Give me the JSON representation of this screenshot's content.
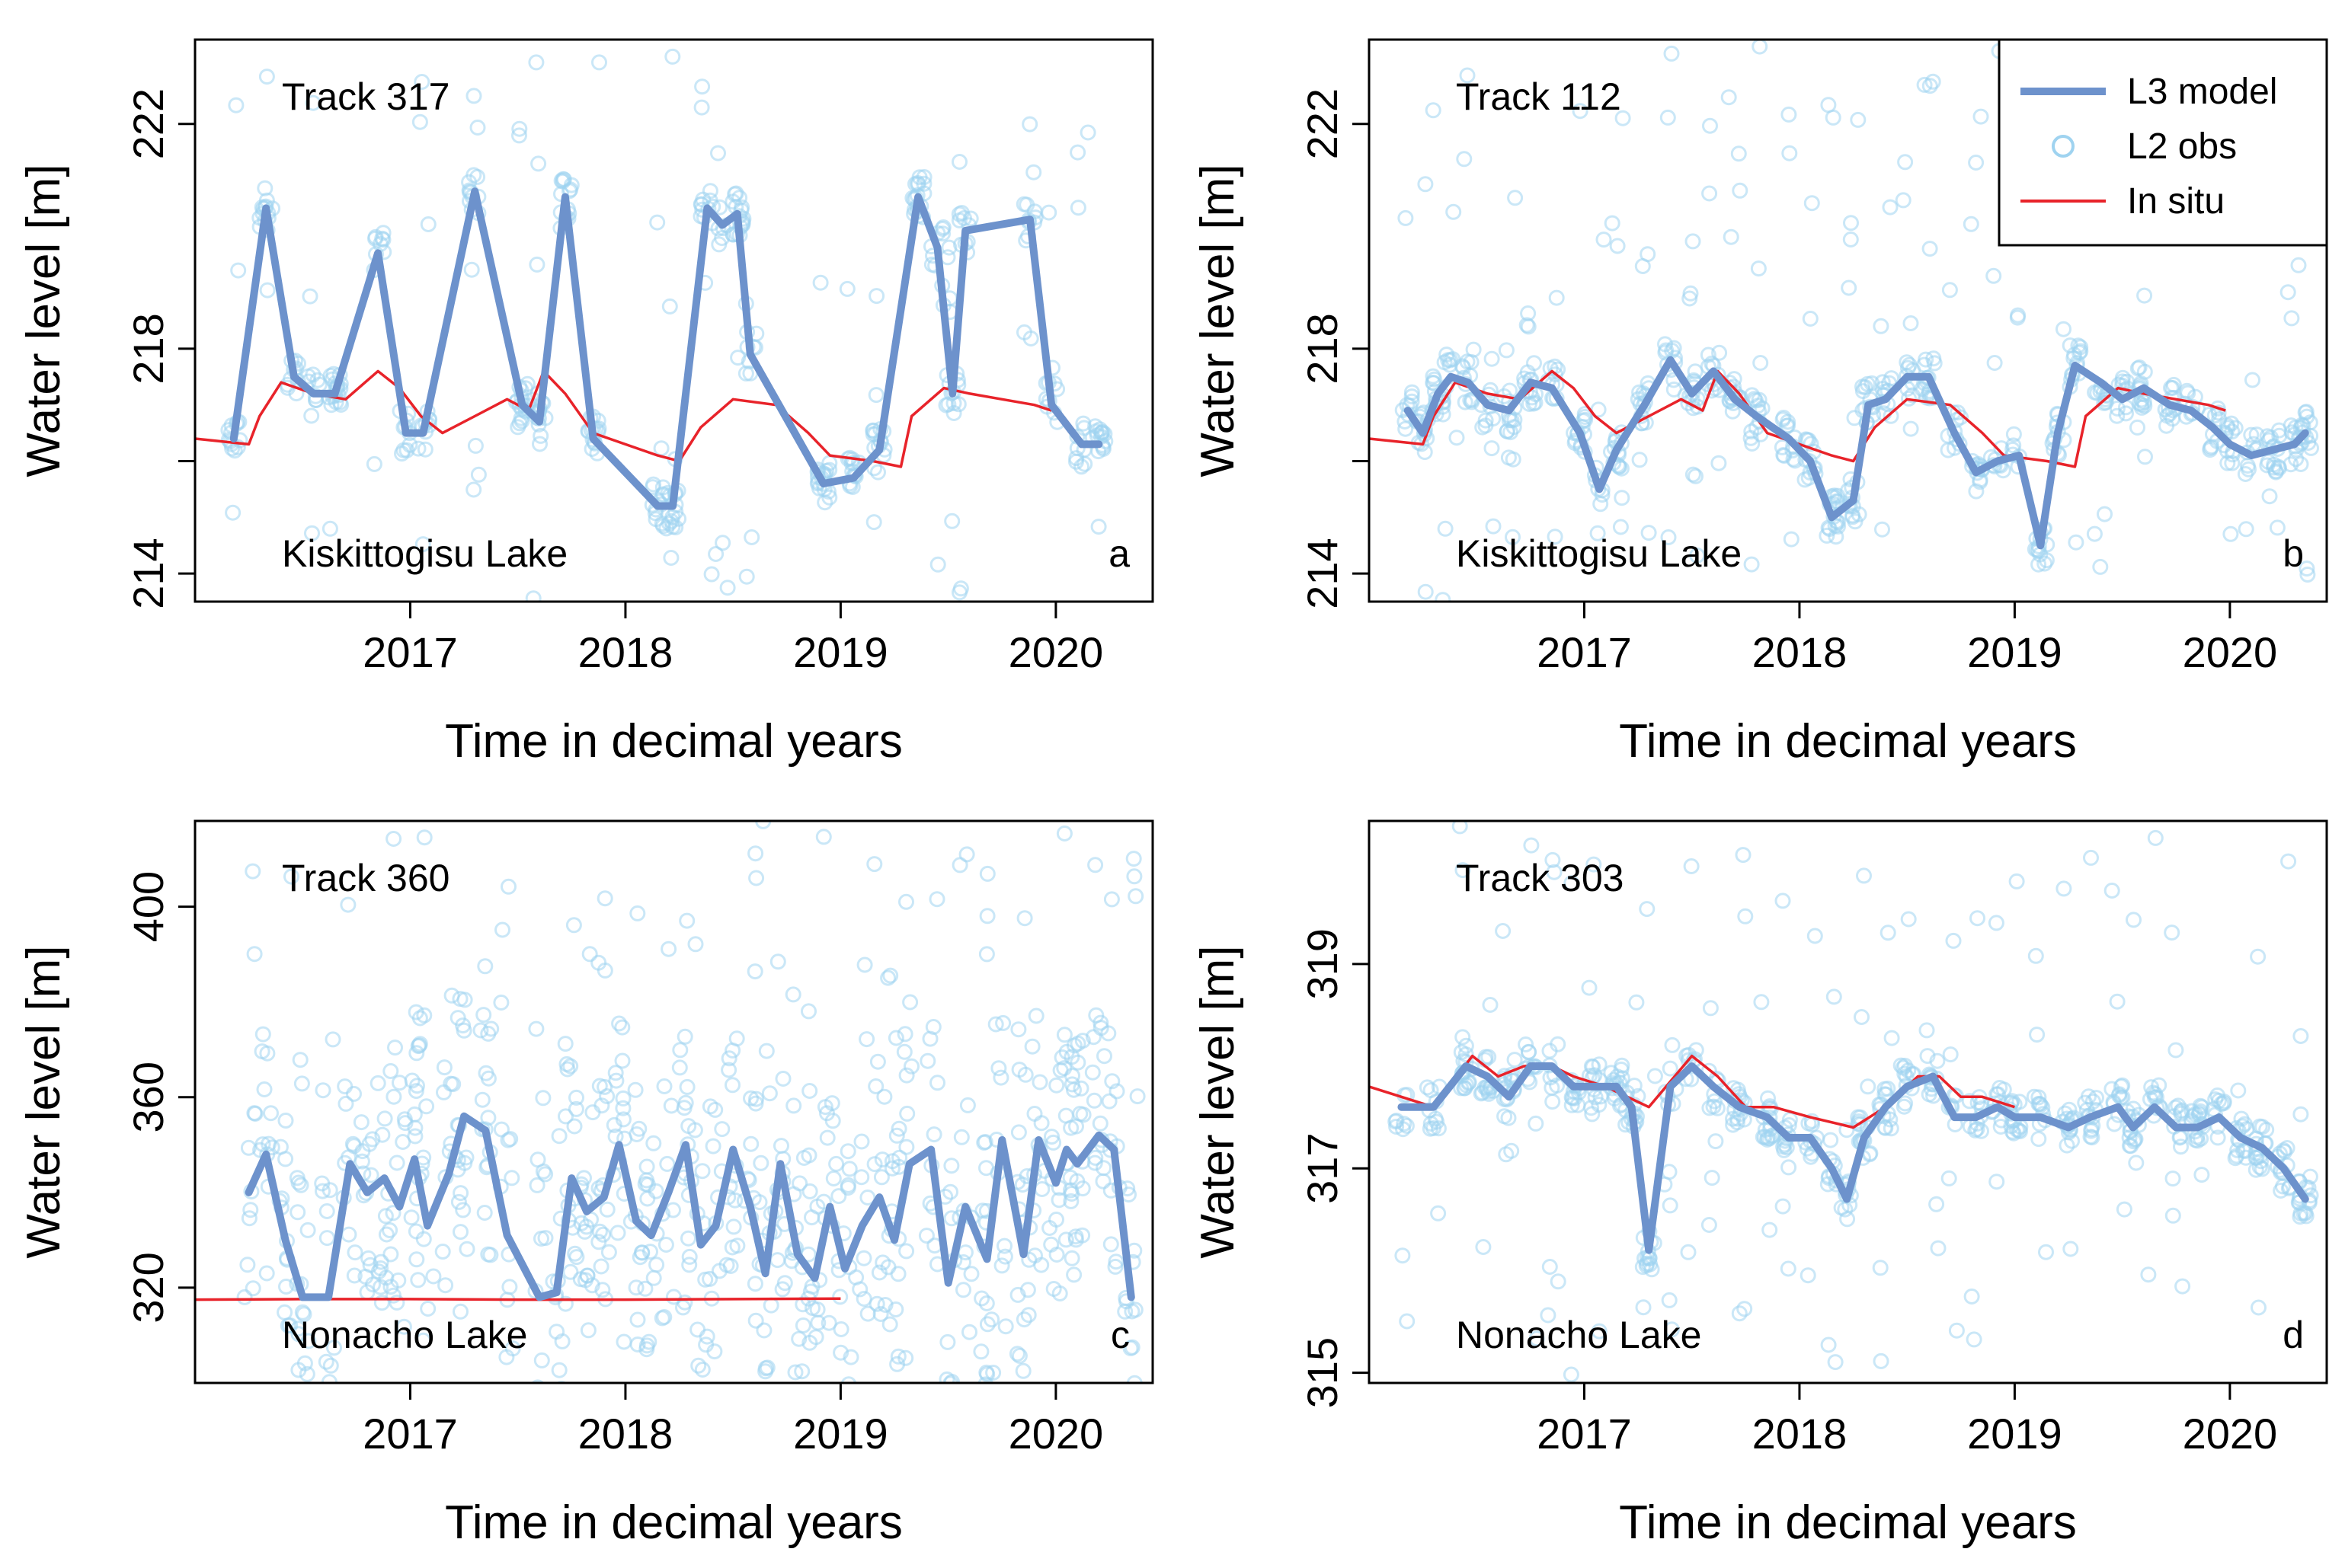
{
  "colors": {
    "l3": "#6d92cc",
    "obs": "#9fd3f0",
    "insitu": "#e8232a"
  },
  "legend": {
    "l3": "L3 model",
    "obs": "L2 obs",
    "insitu": "In situ"
  },
  "chart_data": [
    {
      "type": "line",
      "panel": "a",
      "title": "Track 317",
      "lake": "Kiskittogisu Lake",
      "xlabel": "Time in decimal years",
      "ylabel": "Water level [m]",
      "xlim": [
        2016.0,
        2020.45
      ],
      "ylim": [
        213.5,
        223.5
      ],
      "xticks": [
        2017,
        2018,
        2019,
        2020
      ],
      "yticks": [
        214,
        216,
        218,
        222
      ],
      "ytick_labels": [
        "214",
        "",
        "218",
        "222"
      ],
      "l3_x": [
        2016.18,
        2016.33,
        2016.46,
        2016.55,
        2016.65,
        2016.85,
        2016.98,
        2017.06,
        2017.3,
        2017.52,
        2017.6,
        2017.72,
        2017.85,
        2018.15,
        2018.22,
        2018.38,
        2018.45,
        2018.52,
        2018.58,
        2018.92,
        2019.06,
        2019.18,
        2019.36,
        2019.45,
        2019.52,
        2019.58,
        2019.88,
        2019.98,
        2020.12,
        2020.2
      ],
      "l3_y": [
        216.4,
        220.5,
        217.5,
        217.2,
        217.2,
        219.7,
        216.5,
        216.5,
        220.8,
        217.0,
        216.7,
        220.7,
        216.4,
        215.2,
        215.2,
        220.5,
        220.2,
        220.4,
        217.9,
        215.6,
        215.7,
        216.2,
        220.7,
        219.8,
        217.2,
        220.1,
        220.3,
        217.0,
        216.3,
        216.3
      ],
      "insitu_x": [
        2016.0,
        2016.25,
        2016.3,
        2016.4,
        2016.55,
        2016.7,
        2016.85,
        2016.95,
        2017.05,
        2017.15,
        2017.3,
        2017.45,
        2017.55,
        2017.62,
        2017.72,
        2017.85,
        2018.0,
        2018.15,
        2018.25,
        2018.35,
        2018.5,
        2018.7,
        2018.85,
        2018.95,
        2019.15,
        2019.28,
        2019.33,
        2019.48,
        2019.6,
        2019.75,
        2019.9,
        2019.98
      ],
      "insitu_y": [
        216.4,
        216.3,
        216.8,
        217.4,
        217.2,
        217.1,
        217.6,
        217.3,
        216.8,
        216.5,
        216.8,
        217.1,
        216.9,
        217.6,
        217.2,
        216.5,
        216.3,
        216.1,
        216.0,
        216.6,
        217.1,
        217.0,
        216.5,
        216.1,
        216.0,
        215.9,
        216.8,
        217.3,
        217.2,
        217.1,
        217.0,
        216.9
      ]
    },
    {
      "type": "line",
      "panel": "b",
      "title": "Track 112",
      "lake": "Kiskittogisu Lake",
      "xlabel": "Time in decimal years",
      "ylabel": "Water level [m]",
      "xlim": [
        2016.0,
        2020.45
      ],
      "ylim": [
        213.5,
        223.5
      ],
      "xticks": [
        2017,
        2018,
        2019,
        2020
      ],
      "yticks": [
        214,
        216,
        218,
        222
      ],
      "ytick_labels": [
        "214",
        "",
        "218",
        "222"
      ],
      "l3_x": [
        2016.18,
        2016.25,
        2016.32,
        2016.38,
        2016.46,
        2016.55,
        2016.65,
        2016.75,
        2016.85,
        2016.98,
        2017.07,
        2017.15,
        2017.28,
        2017.4,
        2017.5,
        2017.6,
        2017.7,
        2017.8,
        2017.95,
        2018.05,
        2018.15,
        2018.25,
        2018.32,
        2018.4,
        2018.5,
        2018.6,
        2018.72,
        2018.82,
        2018.92,
        2019.02,
        2019.12,
        2019.2,
        2019.28,
        2019.4,
        2019.5,
        2019.6,
        2019.72,
        2019.82,
        2019.92,
        2020.0,
        2020.1,
        2020.2,
        2020.3,
        2020.35
      ],
      "l3_y": [
        216.9,
        216.5,
        217.2,
        217.5,
        217.4,
        217.0,
        216.9,
        217.4,
        217.3,
        216.5,
        215.5,
        216.2,
        217.0,
        217.8,
        217.2,
        217.6,
        217.1,
        216.8,
        216.4,
        216.0,
        215.0,
        215.3,
        217.0,
        217.1,
        217.5,
        217.5,
        216.5,
        215.8,
        216.0,
        216.1,
        214.5,
        216.5,
        217.7,
        217.4,
        217.1,
        217.3,
        217.0,
        216.9,
        216.6,
        216.3,
        216.1,
        216.2,
        216.3,
        216.5
      ],
      "insitu_x": [
        2016.0,
        2016.25,
        2016.3,
        2016.4,
        2016.55,
        2016.7,
        2016.85,
        2016.95,
        2017.05,
        2017.15,
        2017.3,
        2017.45,
        2017.55,
        2017.62,
        2017.72,
        2017.85,
        2018.0,
        2018.15,
        2018.25,
        2018.35,
        2018.5,
        2018.7,
        2018.85,
        2018.95,
        2019.15,
        2019.28,
        2019.33,
        2019.48,
        2019.6,
        2019.75,
        2019.9,
        2019.98
      ],
      "insitu_y": [
        216.4,
        216.3,
        216.8,
        217.4,
        217.2,
        217.1,
        217.6,
        217.3,
        216.8,
        216.5,
        216.8,
        217.1,
        216.9,
        217.6,
        217.2,
        216.5,
        216.3,
        216.1,
        216.0,
        216.6,
        217.1,
        217.0,
        216.5,
        216.1,
        216.0,
        215.9,
        216.8,
        217.3,
        217.2,
        217.1,
        217.0,
        216.9
      ]
    },
    {
      "type": "line",
      "panel": "c",
      "title": "Track 360",
      "lake": "Nonacho Lake",
      "xlabel": "Time in decimal years",
      "ylabel": "Water level [m]",
      "xlim": [
        2016.0,
        2020.45
      ],
      "ylim": [
        300,
        418
      ],
      "xticks": [
        2017,
        2018,
        2019,
        2020
      ],
      "yticks": [
        320,
        360,
        400
      ],
      "ytick_labels": [
        "320",
        "360",
        "400"
      ],
      "l3_x": [
        2016.25,
        2016.33,
        2016.42,
        2016.5,
        2016.62,
        2016.72,
        2016.8,
        2016.88,
        2016.95,
        2017.02,
        2017.08,
        2017.18,
        2017.25,
        2017.35,
        2017.45,
        2017.6,
        2017.68,
        2017.75,
        2017.82,
        2017.9,
        2017.97,
        2018.05,
        2018.12,
        2018.2,
        2018.28,
        2018.35,
        2018.42,
        2018.5,
        2018.58,
        2018.65,
        2018.72,
        2018.8,
        2018.88,
        2018.95,
        2019.02,
        2019.1,
        2019.18,
        2019.25,
        2019.32,
        2019.42,
        2019.5,
        2019.58,
        2019.68,
        2019.75,
        2019.85,
        2019.92,
        2020.0,
        2020.05,
        2020.1,
        2020.2,
        2020.27,
        2020.35
      ],
      "l3_y": [
        340,
        348,
        330,
        318,
        318,
        346,
        340,
        343,
        337,
        347,
        333,
        344,
        356,
        353,
        331,
        318,
        319,
        343,
        336,
        339,
        350,
        334,
        331,
        340,
        350,
        329,
        333,
        349,
        337,
        323,
        346,
        327,
        322,
        337,
        324,
        333,
        339,
        330,
        346,
        349,
        321,
        337,
        326,
        351,
        327,
        351,
        342,
        349,
        346,
        352,
        349,
        318
      ],
      "insitu_x": [
        2016.0,
        2016.5,
        2017.0,
        2017.5,
        2018.0,
        2018.5,
        2019.0
      ],
      "insitu_y": [
        317.5,
        317.6,
        317.6,
        317.5,
        317.5,
        317.6,
        317.7
      ]
    },
    {
      "type": "line",
      "panel": "d",
      "title": "Track 303",
      "lake": "Nonacho Lake",
      "xlabel": "Time in decimal years",
      "ylabel": "Water level [m]",
      "xlim": [
        2016.0,
        2020.45
      ],
      "ylim": [
        314.9,
        320.4
      ],
      "xticks": [
        2017,
        2018,
        2019,
        2020
      ],
      "yticks": [
        315,
        317,
        319
      ],
      "ytick_labels": [
        "315",
        "317",
        "319"
      ],
      "l3_x": [
        2016.15,
        2016.3,
        2016.45,
        2016.55,
        2016.65,
        2016.75,
        2016.85,
        2016.95,
        2017.05,
        2017.15,
        2017.22,
        2017.3,
        2017.4,
        2017.5,
        2017.6,
        2017.72,
        2017.85,
        2017.95,
        2018.05,
        2018.15,
        2018.22,
        2018.3,
        2018.4,
        2018.5,
        2018.62,
        2018.72,
        2018.82,
        2018.92,
        2019.0,
        2019.12,
        2019.25,
        2019.35,
        2019.48,
        2019.55,
        2019.65,
        2019.75,
        2019.85,
        2019.95,
        2020.05,
        2020.15,
        2020.25,
        2020.35
      ],
      "l3_y": [
        317.6,
        317.6,
        318.0,
        317.9,
        317.7,
        318.0,
        318.0,
        317.8,
        317.8,
        317.8,
        317.6,
        316.2,
        317.8,
        318.0,
        317.8,
        317.6,
        317.5,
        317.3,
        317.3,
        317.0,
        316.7,
        317.3,
        317.6,
        317.8,
        317.9,
        317.5,
        317.5,
        317.6,
        317.5,
        317.5,
        317.4,
        317.5,
        317.6,
        317.4,
        317.6,
        317.4,
        317.4,
        317.5,
        317.3,
        317.2,
        317.0,
        316.7
      ],
      "insitu_x": [
        2016.0,
        2016.15,
        2016.3,
        2016.48,
        2016.6,
        2016.72,
        2016.85,
        2016.95,
        2017.1,
        2017.3,
        2017.5,
        2017.62,
        2017.75,
        2017.88,
        2018.05,
        2018.25,
        2018.4,
        2018.55,
        2018.65,
        2018.75,
        2018.85,
        2019.0
      ],
      "insitu_y": [
        317.8,
        317.7,
        317.6,
        318.1,
        317.9,
        318.0,
        318.0,
        317.9,
        317.8,
        317.6,
        318.1,
        317.9,
        317.6,
        317.6,
        317.5,
        317.4,
        317.6,
        317.9,
        317.9,
        317.7,
        317.7,
        317.6
      ]
    }
  ]
}
